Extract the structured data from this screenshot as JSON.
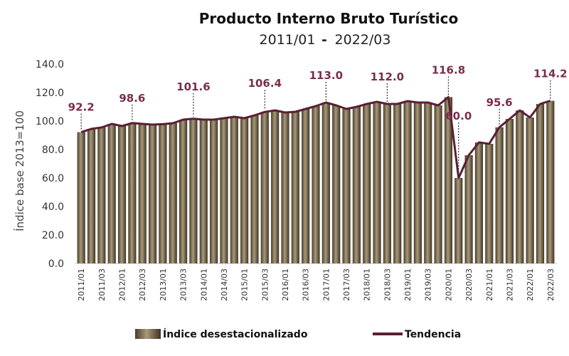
{
  "chart_data": {
    "type": "bar",
    "title": "Producto Interno Bruto Turístico",
    "subtitle_start": "2011/01",
    "subtitle_sep": "-",
    "subtitle_end": "2022/03",
    "ylabel": "Índice base 2013=100",
    "ylim": [
      0,
      140
    ],
    "yticks": [
      "0.0",
      "20.0",
      "40.0",
      "60.0",
      "80.0",
      "100.0",
      "120.0",
      "140.0"
    ],
    "grid": false,
    "legend_position": "bottom",
    "colors": {
      "bar": "#8a7a5e",
      "bar_dark": "#3f3424",
      "line": "#5a1f33",
      "label": "#7b2d4b"
    },
    "categories": [
      "2011/01",
      "2011/02",
      "2011/03",
      "2011/04",
      "2012/01",
      "2012/02",
      "2012/03",
      "2012/04",
      "2013/01",
      "2013/02",
      "2013/03",
      "2013/04",
      "2014/01",
      "2014/02",
      "2014/03",
      "2014/04",
      "2015/01",
      "2015/02",
      "2015/03",
      "2015/04",
      "2016/01",
      "2016/02",
      "2016/03",
      "2016/04",
      "2017/01",
      "2017/02",
      "2017/03",
      "2017/04",
      "2018/01",
      "2018/02",
      "2018/03",
      "2018/04",
      "2019/01",
      "2019/02",
      "2019/03",
      "2019/04",
      "2020/01",
      "2020/02",
      "2020/03",
      "2020/04",
      "2021/01",
      "2021/02",
      "2021/03",
      "2021/04",
      "2022/01",
      "2022/02",
      "2022/03"
    ],
    "tick_labels": [
      "2011/01",
      "2011/03",
      "2012/01",
      "2012/03",
      "2013/01",
      "2013/03",
      "2014/01",
      "2014/03",
      "2015/01",
      "2015/03",
      "2016/01",
      "2016/03",
      "2017/01",
      "2017/03",
      "2018/01",
      "2018/03",
      "2019/01",
      "2019/03",
      "2020/01",
      "2020/03",
      "2021/01",
      "2021/03",
      "2022/01",
      "2022/03"
    ],
    "series": [
      {
        "name": "Índice desestacionalizado",
        "values": [
          92.2,
          94.5,
          95.5,
          98.0,
          96.5,
          98.6,
          98.0,
          97.5,
          97.8,
          98.5,
          101.0,
          101.6,
          101.0,
          101.0,
          102.0,
          103.0,
          102.0,
          104.0,
          106.4,
          107.5,
          106.0,
          106.5,
          108.5,
          110.5,
          113.0,
          111.0,
          108.5,
          110.0,
          112.0,
          113.5,
          112.0,
          112.0,
          114.0,
          113.0,
          113.0,
          111.0,
          116.8,
          60.0,
          76.0,
          85.0,
          84.0,
          95.6,
          101.5,
          107.5,
          102.5,
          112.0,
          114.2
        ]
      },
      {
        "name": "Tendencia",
        "values": [
          92.2,
          94.5,
          95.5,
          98.0,
          96.5,
          98.6,
          98.0,
          97.5,
          97.8,
          98.5,
          101.0,
          101.6,
          101.0,
          101.0,
          102.0,
          103.0,
          102.0,
          104.0,
          106.4,
          107.5,
          106.0,
          106.5,
          108.5,
          110.5,
          113.0,
          111.0,
          108.5,
          110.0,
          112.0,
          113.5,
          112.0,
          112.0,
          114.0,
          113.0,
          113.0,
          111.0,
          116.8,
          60.0,
          76.0,
          85.0,
          84.0,
          95.6,
          101.5,
          107.5,
          102.5,
          112.0,
          114.2
        ]
      }
    ],
    "annotations": [
      {
        "index": 0,
        "text": "92.2"
      },
      {
        "index": 5,
        "text": "98.6"
      },
      {
        "index": 11,
        "text": "101.6"
      },
      {
        "index": 18,
        "text": "106.4"
      },
      {
        "index": 24,
        "text": "113.0"
      },
      {
        "index": 30,
        "text": "112.0"
      },
      {
        "index": 36,
        "text": "116.8"
      },
      {
        "index": 37,
        "text": "60.0"
      },
      {
        "index": 41,
        "text": "95.6"
      },
      {
        "index": 46,
        "text": "114.2"
      }
    ]
  }
}
